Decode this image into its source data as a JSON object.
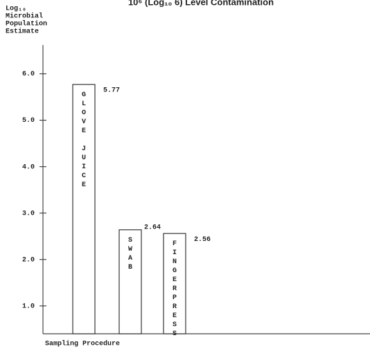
{
  "chart_data": {
    "type": "bar",
    "title": "10⁶ (Log₁₀ 6) Level Contamination",
    "y_label": [
      "Log₁₀",
      "Microbial",
      "Population",
      "Estimate"
    ],
    "x_label": "Sampling Procedure",
    "categories": [
      "GLOVE JUICE",
      "SWAB",
      "FINGERPRESS"
    ],
    "values": [
      5.77,
      2.64,
      2.56
    ],
    "color": "#ffffff",
    "ylim": [
      0.4,
      6.62
    ],
    "yticks": [
      {
        "value": 1,
        "label": "1.0"
      },
      {
        "value": 2,
        "label": "2.0"
      },
      {
        "value": 3,
        "label": "3.0"
      },
      {
        "value": 4,
        "label": "4.0"
      },
      {
        "value": 5,
        "label": "5.0"
      },
      {
        "value": 6,
        "label": "6.0"
      }
    ]
  }
}
